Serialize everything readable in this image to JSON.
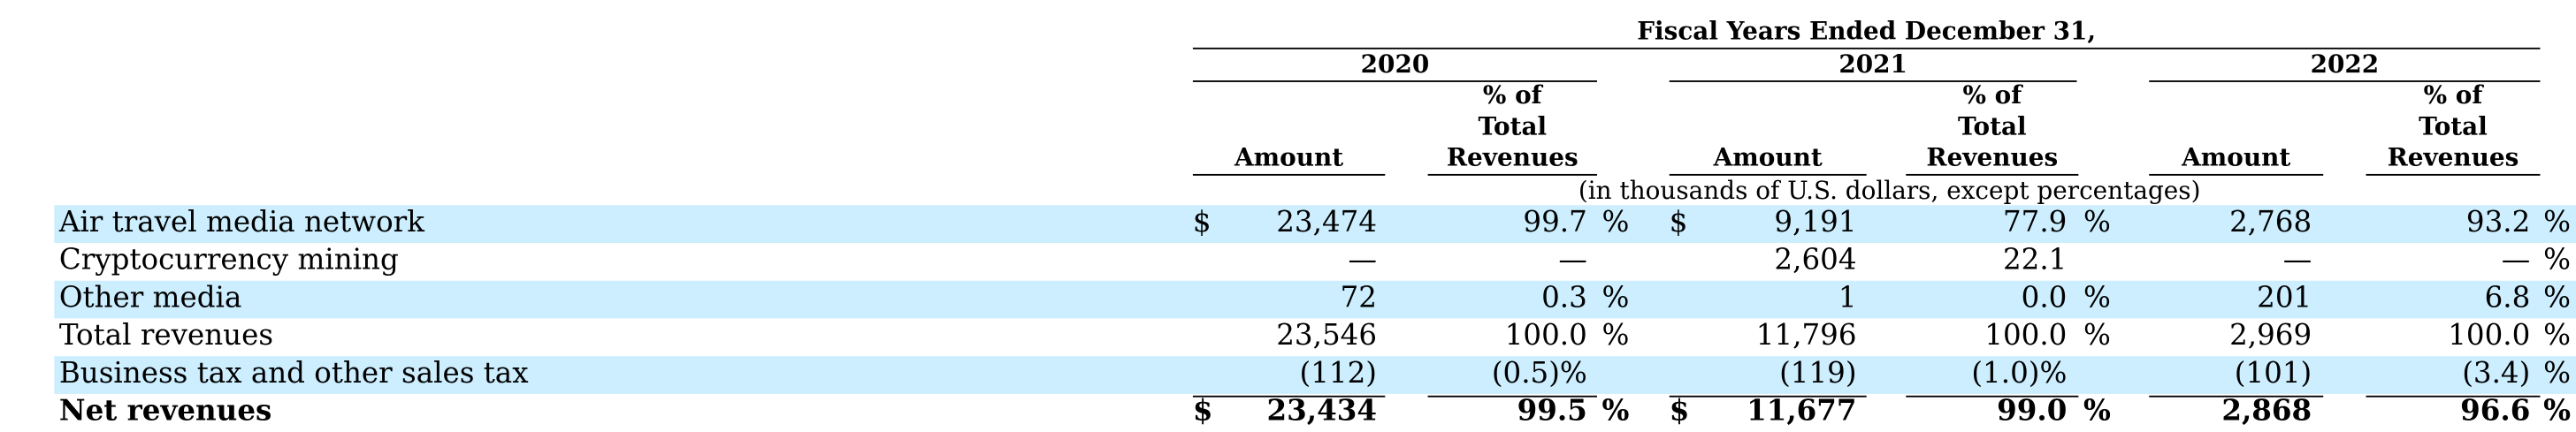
{
  "colors": {
    "band": "#cceeff",
    "rule": "#000000"
  },
  "header": {
    "title": "Fiscal Years Ended December 31,",
    "years": [
      "2020",
      "2021",
      "2022"
    ],
    "amount_label": "Amount",
    "pct_label_line1": "% of",
    "pct_label_line2": "Total",
    "pct_label_line3": "Revenues",
    "units_note": "(in thousands of U.S. dollars, except percentages)"
  },
  "rows": [
    {
      "label": "Air travel media network",
      "shaded": true,
      "bold": false,
      "cells": [
        {
          "dollar": "$",
          "amount": "23,474",
          "pct": "99.7",
          "pct_suffix": "%"
        },
        {
          "dollar": "$",
          "amount": "9,191",
          "pct": "77.9",
          "pct_suffix": "%"
        },
        {
          "dollar": "",
          "amount": "2,768",
          "pct": "93.2",
          "pct_suffix": "%"
        }
      ]
    },
    {
      "label": "Cryptocurrency mining",
      "shaded": false,
      "bold": false,
      "cells": [
        {
          "dollar": "",
          "amount": "—",
          "pct": "—",
          "pct_suffix": ""
        },
        {
          "dollar": "",
          "amount": "2,604",
          "pct": "22.1",
          "pct_suffix": ""
        },
        {
          "dollar": "",
          "amount": "—",
          "pct": "—",
          "pct_suffix": "%"
        }
      ]
    },
    {
      "label": "Other media",
      "shaded": true,
      "bold": false,
      "cells": [
        {
          "dollar": "",
          "amount": "72",
          "pct": "0.3",
          "pct_suffix": "%"
        },
        {
          "dollar": "",
          "amount": "1",
          "pct": "0.0",
          "pct_suffix": "%"
        },
        {
          "dollar": "",
          "amount": "201",
          "pct": "6.8",
          "pct_suffix": "%"
        }
      ]
    },
    {
      "label": "Total revenues",
      "shaded": false,
      "bold": false,
      "cells": [
        {
          "dollar": "",
          "amount": "23,546",
          "pct": "100.0",
          "pct_suffix": "%"
        },
        {
          "dollar": "",
          "amount": "11,796",
          "pct": "100.0",
          "pct_suffix": "%"
        },
        {
          "dollar": "",
          "amount": "2,969",
          "pct": "100.0",
          "pct_suffix": "%"
        }
      ]
    },
    {
      "label": "Business tax and other sales tax",
      "shaded": true,
      "bold": false,
      "cells": [
        {
          "dollar": "",
          "amount": "(112)",
          "pct": "(0.5)%",
          "pct_suffix": ""
        },
        {
          "dollar": "",
          "amount": "(119)",
          "pct": "(1.0)%",
          "pct_suffix": ""
        },
        {
          "dollar": "",
          "amount": "(101)",
          "pct": "(3.4)",
          "pct_suffix": "%"
        }
      ]
    },
    {
      "label": "Net revenues",
      "shaded": false,
      "bold": true,
      "cells": [
        {
          "dollar": "$",
          "amount": "23,434",
          "pct": "99.5",
          "pct_suffix": "%"
        },
        {
          "dollar": "$",
          "amount": "11,677",
          "pct": "99.0",
          "pct_suffix": "%"
        },
        {
          "dollar": "",
          "amount": "2,868",
          "pct": "96.6",
          "pct_suffix": "%"
        }
      ]
    }
  ]
}
